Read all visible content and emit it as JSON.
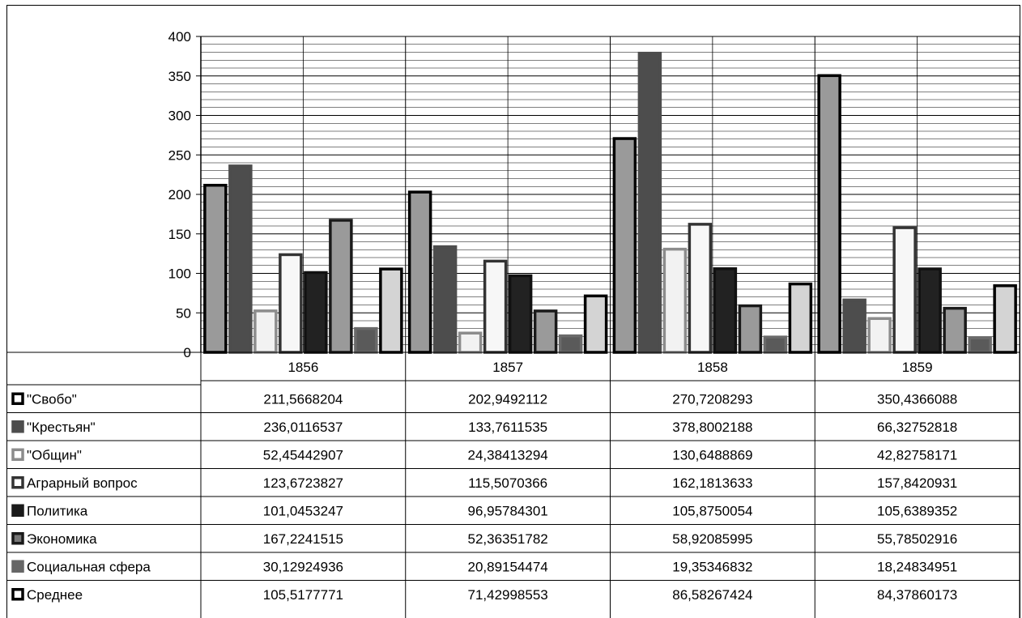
{
  "chart_data": {
    "type": "bar",
    "title": "",
    "xlabel": "",
    "ylabel": "",
    "categories": [
      "1856",
      "1857",
      "1858",
      "1859"
    ],
    "ylim": [
      0,
      400
    ],
    "yticks": [
      0,
      50,
      100,
      150,
      200,
      250,
      300,
      350,
      400
    ],
    "minor_grid_step": 10,
    "grid": true,
    "legend": "data-table-left",
    "series": [
      {
        "name": "\"Свобо\"",
        "values": [
          "211,5668204",
          "202,9492112",
          "270,7208293",
          "350,4366088"
        ],
        "num": [
          211.5668204,
          202.9492112,
          270.7208293,
          350.4366088
        ],
        "fill": "#9a9a9a",
        "stroke": "#000000",
        "key_fill": "#ffffff",
        "key_border": "#000000"
      },
      {
        "name": "\"Крестьян\"",
        "values": [
          "236,0116537",
          "133,7611535",
          "378,8002188",
          "66,32752818"
        ],
        "num": [
          236.0116537,
          133.7611535,
          378.8002188,
          66.32752818
        ],
        "fill": "#4d4d4d",
        "stroke": "#4d4d4d",
        "key_fill": "#4d4d4d",
        "key_border": "#4d4d4d"
      },
      {
        "name": "\"Общин\"",
        "values": [
          "52,45442907",
          "24,38413294",
          "130,6488869",
          "42,82758171"
        ],
        "num": [
          52.45442907,
          24.38413294,
          130.6488869,
          42.82758171
        ],
        "fill": "#f2f2f2",
        "stroke": "#8c8c8c",
        "key_fill": "#ffffff",
        "key_border": "#8c8c8c"
      },
      {
        "name": "Аграрный вопрос",
        "values": [
          "123,6723827",
          "115,5070366",
          "162,1813633",
          "157,8420931"
        ],
        "num": [
          123.6723827,
          115.5070366,
          162.1813633,
          157.8420931
        ],
        "fill": "#f7f7f7",
        "stroke": "#333333",
        "key_fill": "#ffffff",
        "key_border": "#333333"
      },
      {
        "name": "Политика",
        "values": [
          "101,0453247",
          "96,95784301",
          "105,8750054",
          "105,6389352"
        ],
        "num": [
          101.0453247,
          96.95784301,
          105.8750054,
          105.6389352
        ],
        "fill": "#222222",
        "stroke": "#111111",
        "key_fill": "#1a1a1a",
        "key_border": "#1a1a1a"
      },
      {
        "name": "Экономика",
        "values": [
          "167,2241515",
          "52,36351782",
          "58,92085995",
          "55,78502916"
        ],
        "num": [
          167.2241515,
          52.36351782,
          58.92085995,
          55.78502916
        ],
        "fill": "#9a9a9a",
        "stroke": "#1a1a1a",
        "key_fill": "#777777",
        "key_border": "#1a1a1a"
      },
      {
        "name": "Социальная сфера",
        "values": [
          "30,12924936",
          "20,89154474",
          "19,35346832",
          "18,24834951"
        ],
        "num": [
          30.12924936,
          20.89154474,
          19.35346832,
          18.24834951
        ],
        "fill": "#5a5a5a",
        "stroke": "#6a6a6a",
        "key_fill": "#666666",
        "key_border": "#666666"
      },
      {
        "name": "Среднее",
        "values": [
          "105,5177771",
          "71,42998553",
          "86,58267424",
          "84,37860173"
        ],
        "num": [
          105.5177771,
          71.42998553,
          86.58267424,
          84.37860173
        ],
        "fill": "#d4d4d4",
        "stroke": "#000000",
        "key_fill": "#ffffff",
        "key_border": "#000000"
      }
    ]
  }
}
